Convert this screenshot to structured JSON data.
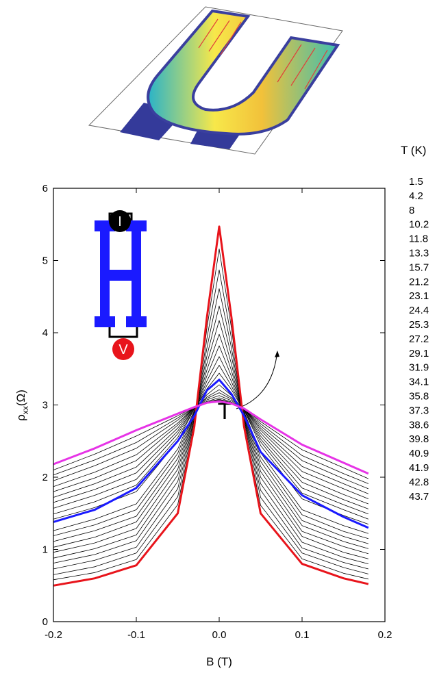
{
  "chart_data": {
    "type": "line",
    "x_label": "B (T)",
    "y_label": "ρ",
    "y_label_sub": "xx",
    "y_label_unit": "(Ω)",
    "legend_title": "T (K)",
    "annotation": "T",
    "inset_labels": [
      "I",
      "V"
    ],
    "x": [
      -0.2,
      -0.15,
      -0.1,
      -0.05,
      -0.03,
      -0.015,
      0,
      0.015,
      0.03,
      0.05,
      0.1,
      0.15,
      0.18
    ],
    "xlim": [
      -0.2,
      0.2
    ],
    "xticks": [
      -0.2,
      -0.1,
      {
        "value": 0,
        "label": "0.0"
      },
      0.1,
      0.2
    ],
    "ylim": [
      0,
      6
    ],
    "yticks": [
      0,
      1,
      2,
      3,
      4,
      5,
      6
    ],
    "series": [
      {
        "name": "1.5",
        "color": "#e8141b",
        "values": [
          0.5,
          0.6,
          0.78,
          1.5,
          2.7,
          4.2,
          5.47,
          4.2,
          2.7,
          1.5,
          0.8,
          0.6,
          0.52
        ]
      },
      {
        "name": "4.2",
        "color": "#000000",
        "values": [
          0.58,
          0.68,
          0.86,
          1.62,
          2.74,
          4.05,
          5.16,
          4.05,
          2.73,
          1.61,
          0.87,
          0.67,
          0.59
        ]
      },
      {
        "name": "8",
        "color": "#000000",
        "values": [
          0.65,
          0.76,
          0.95,
          1.73,
          2.77,
          3.91,
          4.87,
          3.91,
          2.76,
          1.72,
          0.95,
          0.75,
          0.66
        ]
      },
      {
        "name": "10.2",
        "color": "#000000",
        "values": [
          0.73,
          0.85,
          1.03,
          1.84,
          2.8,
          3.78,
          4.61,
          3.78,
          2.79,
          1.82,
          1.02,
          0.82,
          0.73
        ]
      },
      {
        "name": "11.8",
        "color": "#000000",
        "values": [
          0.81,
          0.93,
          1.12,
          1.94,
          2.82,
          3.67,
          4.37,
          3.67,
          2.81,
          1.91,
          1.1,
          0.89,
          0.8
        ]
      },
      {
        "name": "13.3",
        "color": "#000000",
        "values": [
          0.88,
          1.01,
          1.2,
          2.03,
          2.85,
          3.57,
          4.17,
          3.56,
          2.83,
          2.0,
          1.18,
          0.96,
          0.87
        ]
      },
      {
        "name": "15.7",
        "color": "#000000",
        "values": [
          0.96,
          1.09,
          1.29,
          2.11,
          2.87,
          3.48,
          3.98,
          3.47,
          2.85,
          2.08,
          1.25,
          1.04,
          0.94
        ]
      },
      {
        "name": "21.2",
        "color": "#000000",
        "values": [
          1.03,
          1.17,
          1.38,
          2.19,
          2.88,
          3.4,
          3.82,
          3.39,
          2.87,
          2.15,
          1.33,
          1.11,
          1.01
        ]
      },
      {
        "name": "23.1",
        "color": "#000000",
        "values": [
          1.11,
          1.26,
          1.46,
          2.26,
          2.9,
          3.33,
          3.67,
          3.32,
          2.89,
          2.22,
          1.4,
          1.18,
          1.08
        ]
      },
      {
        "name": "24.4",
        "color": "#000000",
        "values": [
          1.19,
          1.34,
          1.55,
          2.33,
          2.91,
          3.27,
          3.55,
          3.26,
          2.9,
          2.28,
          1.48,
          1.25,
          1.15
        ]
      },
      {
        "name": "25.3",
        "color": "#000000",
        "values": [
          1.26,
          1.42,
          1.63,
          2.39,
          2.93,
          3.22,
          3.44,
          3.21,
          2.91,
          2.34,
          1.55,
          1.33,
          1.22
        ]
      },
      {
        "name": "27.2",
        "color": "#1a1aff",
        "values": [
          1.38,
          1.55,
          1.85,
          2.5,
          2.85,
          3.2,
          3.35,
          3.15,
          2.85,
          2.35,
          1.75,
          1.45,
          1.3
        ]
      },
      {
        "name": "29.1",
        "color": "#000000",
        "values": [
          1.42,
          1.58,
          1.8,
          2.5,
          2.95,
          3.14,
          3.28,
          3.13,
          2.93,
          2.44,
          1.7,
          1.47,
          1.35
        ]
      },
      {
        "name": "31.9",
        "color": "#000000",
        "values": [
          1.49,
          1.66,
          1.89,
          2.55,
          2.95,
          3.11,
          3.21,
          3.1,
          2.93,
          2.49,
          1.78,
          1.55,
          1.42
        ]
      },
      {
        "name": "34.1",
        "color": "#000000",
        "values": [
          1.57,
          1.75,
          1.97,
          2.6,
          2.96,
          3.09,
          3.17,
          3.08,
          2.94,
          2.53,
          1.85,
          1.62,
          1.49
        ]
      },
      {
        "name": "35.8",
        "color": "#000000",
        "values": [
          1.65,
          1.83,
          2.06,
          2.64,
          2.96,
          3.07,
          3.13,
          3.06,
          2.94,
          2.57,
          1.93,
          1.69,
          1.56
        ]
      },
      {
        "name": "37.3",
        "color": "#000000",
        "values": [
          1.72,
          1.91,
          2.14,
          2.68,
          2.97,
          3.05,
          3.1,
          3.04,
          2.95,
          2.61,
          2.0,
          1.76,
          1.63
        ]
      },
      {
        "name": "38.6",
        "color": "#000000",
        "values": [
          1.8,
          1.99,
          2.23,
          2.72,
          2.97,
          3.04,
          3.08,
          3.03,
          2.95,
          2.65,
          2.08,
          1.84,
          1.7
        ]
      },
      {
        "name": "39.8",
        "color": "#000000",
        "values": [
          1.87,
          2.07,
          2.31,
          2.75,
          2.97,
          3.04,
          3.07,
          3.03,
          2.95,
          2.68,
          2.15,
          1.91,
          1.77
        ]
      },
      {
        "name": "40.9",
        "color": "#000000",
        "values": [
          1.95,
          2.16,
          2.4,
          2.79,
          2.97,
          3.03,
          3.06,
          3.02,
          2.95,
          2.71,
          2.23,
          1.98,
          1.84
        ]
      },
      {
        "name": "41.9",
        "color": "#000000",
        "values": [
          2.03,
          2.24,
          2.48,
          2.82,
          2.97,
          3.03,
          3.05,
          3.02,
          2.95,
          2.74,
          2.3,
          2.05,
          1.91
        ]
      },
      {
        "name": "42.8",
        "color": "#000000",
        "values": [
          2.1,
          2.32,
          2.57,
          2.85,
          2.97,
          3.03,
          3.05,
          3.02,
          2.95,
          2.77,
          2.38,
          2.13,
          1.98
        ]
      },
      {
        "name": "43.7",
        "color": "#e633e6",
        "values": [
          2.18,
          2.4,
          2.65,
          2.88,
          2.97,
          3.03,
          3.05,
          3.02,
          2.95,
          2.8,
          2.45,
          2.2,
          2.05
        ]
      }
    ]
  }
}
